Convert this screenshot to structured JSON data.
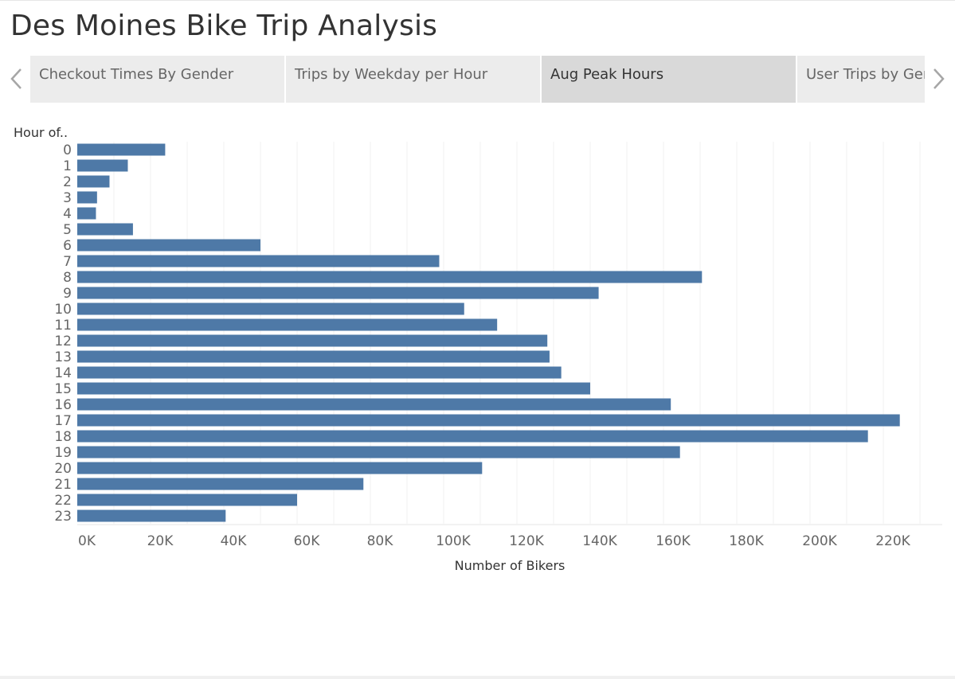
{
  "page": {
    "title": "Des Moines Bike Trip Analysis"
  },
  "tabs": [
    {
      "label": "Checkout Times By Gender",
      "active": false
    },
    {
      "label": "Trips by Weekday per Hour",
      "active": false
    },
    {
      "label": "Aug Peak Hours",
      "active": true
    },
    {
      "label": "User Trips by Gender",
      "active": false
    }
  ],
  "icons": {
    "prev": "chevron-left-icon",
    "next": "chevron-right-icon"
  },
  "colors": {
    "bar": "#4e79a7",
    "active_tab": "#d9d9d9",
    "tab": "#ececec"
  },
  "chart_data": {
    "type": "bar",
    "orientation": "horizontal",
    "ylabel": "Hour of..",
    "xlabel": "Number of Bikers",
    "categories": [
      "0",
      "1",
      "2",
      "3",
      "4",
      "5",
      "6",
      "7",
      "8",
      "9",
      "10",
      "11",
      "12",
      "13",
      "14",
      "15",
      "16",
      "17",
      "18",
      "19",
      "20",
      "21",
      "22",
      "23"
    ],
    "values": [
      24000,
      13800,
      8800,
      5400,
      5100,
      15200,
      50000,
      98800,
      170500,
      142300,
      105600,
      114600,
      128300,
      128900,
      132100,
      140000,
      162000,
      224500,
      215800,
      164500,
      110500,
      78100,
      60000,
      40500
    ],
    "x_ticks": [
      "0K",
      "20K",
      "40K",
      "60K",
      "80K",
      "100K",
      "120K",
      "140K",
      "160K",
      "180K",
      "200K",
      "220K"
    ],
    "xlim": [
      0,
      236000
    ],
    "tick_step": 20000,
    "grid": true
  }
}
